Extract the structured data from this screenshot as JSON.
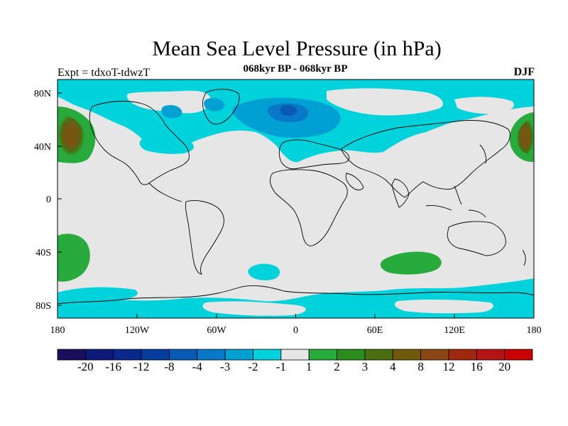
{
  "title": "Mean Sea Level Pressure (in hPa)",
  "subtitle": "068kyr BP - 068kyr BP",
  "left_label": "Expt = tdxoT-tdwzT",
  "right_label": "DJF",
  "map": {
    "projection": "cylindrical equidistant",
    "lon_range": [
      -180,
      180
    ],
    "lat_range": [
      -90,
      90
    ],
    "background_value_color": "#e6e6e6",
    "x_ticks": [
      "180",
      "120W",
      "60W",
      "0",
      "60E",
      "120E",
      "180"
    ],
    "y_ticks": [
      "80N",
      "40N",
      "0",
      "40S",
      "80S"
    ],
    "anomaly_regions": [
      {
        "label": "North Pacific high anomaly",
        "level": "4 to 8",
        "color": "#7a5316"
      },
      {
        "label": "Arctic / North Atlantic low anomaly",
        "level": "-3 to -1",
        "color": "#00d2dc"
      },
      {
        "label": "Iceland low center",
        "level": "-4 to -3",
        "color": "#0a64b4"
      },
      {
        "label": "South Pacific high anomaly",
        "level": "1 to 2",
        "color": "#28aa3c"
      },
      {
        "label": "Southern Indian Ocean high anomaly",
        "level": "1 to 2",
        "color": "#28aa3c"
      },
      {
        "label": "Southern Ocean low anomaly",
        "level": "-2 to -1",
        "color": "#00d2dc"
      }
    ]
  },
  "colorbar": {
    "labels": [
      "-20",
      "-16",
      "-12",
      "-8",
      "-4",
      "-3",
      "-2",
      "-1",
      "1",
      "2",
      "3",
      "4",
      "8",
      "12",
      "16",
      "20"
    ],
    "colors": [
      "#1a0f5c",
      "#0e1a78",
      "#08288c",
      "#053ca0",
      "#0a5ab4",
      "#0a78c8",
      "#00a0d2",
      "#00d2dc",
      "#e6e6e6",
      "#28aa3c",
      "#2d8c1e",
      "#4b6e0f",
      "#6e5a0a",
      "#8c4614",
      "#a0280f",
      "#b41414",
      "#c80000"
    ]
  }
}
